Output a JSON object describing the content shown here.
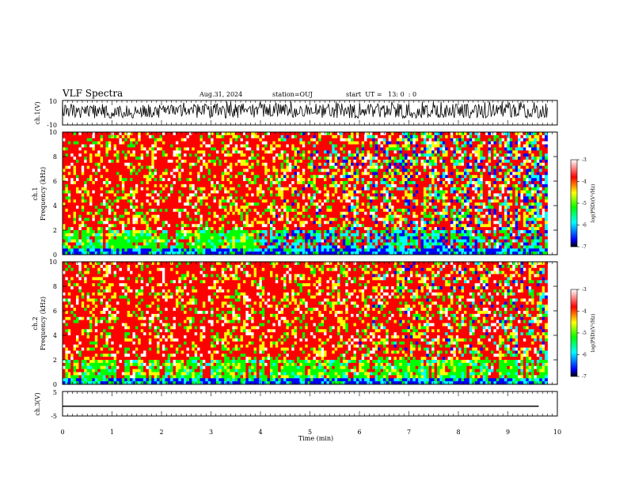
{
  "header": {
    "title": "VLF Spectra",
    "date": "Aug.31, 2024",
    "station": "station=OUJ",
    "start": "start  UT =   13: 0  : 0"
  },
  "colors": {
    "frame": "#000000",
    "trace": "#000000",
    "colormap": [
      "#000000",
      "#0000ff",
      "#00ffff",
      "#00ff00",
      "#ffff00",
      "#ff0000",
      "#ffffff"
    ]
  },
  "chart_data": [
    {
      "type": "line",
      "panel": "ch1-waveform",
      "ylabel": "ch.1(V)",
      "ylim": [
        -10,
        10
      ],
      "yticks": [
        "10",
        "-10"
      ],
      "xlim": [
        0,
        10
      ],
      "note_series": "dense waveform trace, amplitude mostly between about -3 and 8 V, ends near 9.8 min"
    },
    {
      "type": "heatmap",
      "panel": "ch1-spectrogram",
      "ylabel": "ch.1\nFrequency (kHz)",
      "ylabel_top": "ch.1",
      "ylabel_bottom": "Frequency (kHz)",
      "ylim": [
        0,
        10
      ],
      "yticks": [
        "0",
        "2",
        "4",
        "6",
        "8",
        "10"
      ],
      "xlim": [
        0,
        10
      ],
      "data_end_min": 9.8,
      "colorbar": {
        "label": "log(PSD)(V²/Hz)",
        "range": [
          -7,
          -3
        ],
        "ticks": [
          "-3",
          "-4",
          "-5",
          "-6",
          "-7"
        ]
      }
    },
    {
      "type": "heatmap",
      "panel": "ch2-spectrogram",
      "ylabel_top": "ch.2",
      "ylabel_bottom": "Frequency (kHz)",
      "ylim": [
        0,
        10
      ],
      "yticks": [
        "0",
        "2",
        "4",
        "6",
        "8",
        "10"
      ],
      "xlim": [
        0,
        10
      ],
      "data_end_min": 9.8,
      "colorbar": {
        "label": "log(PSD)(V²/Hz)",
        "range": [
          -7,
          -3
        ],
        "ticks": [
          "-3",
          "-4",
          "-5",
          "-6",
          "-7"
        ]
      }
    },
    {
      "type": "line",
      "panel": "ch3-waveform",
      "ylabel": "ch.3(V)",
      "ylim": [
        -5,
        5
      ],
      "yticks": [
        "5",
        "-5"
      ],
      "xlim": [
        0,
        10
      ],
      "series": [
        {
          "x": [
            0,
            10
          ],
          "y": [
            -1,
            -1
          ]
        }
      ]
    }
  ],
  "xaxis": {
    "label": "Time (min)",
    "ticks": [
      "0",
      "1",
      "2",
      "3",
      "4",
      "5",
      "6",
      "7",
      "8",
      "9",
      "10"
    ]
  }
}
